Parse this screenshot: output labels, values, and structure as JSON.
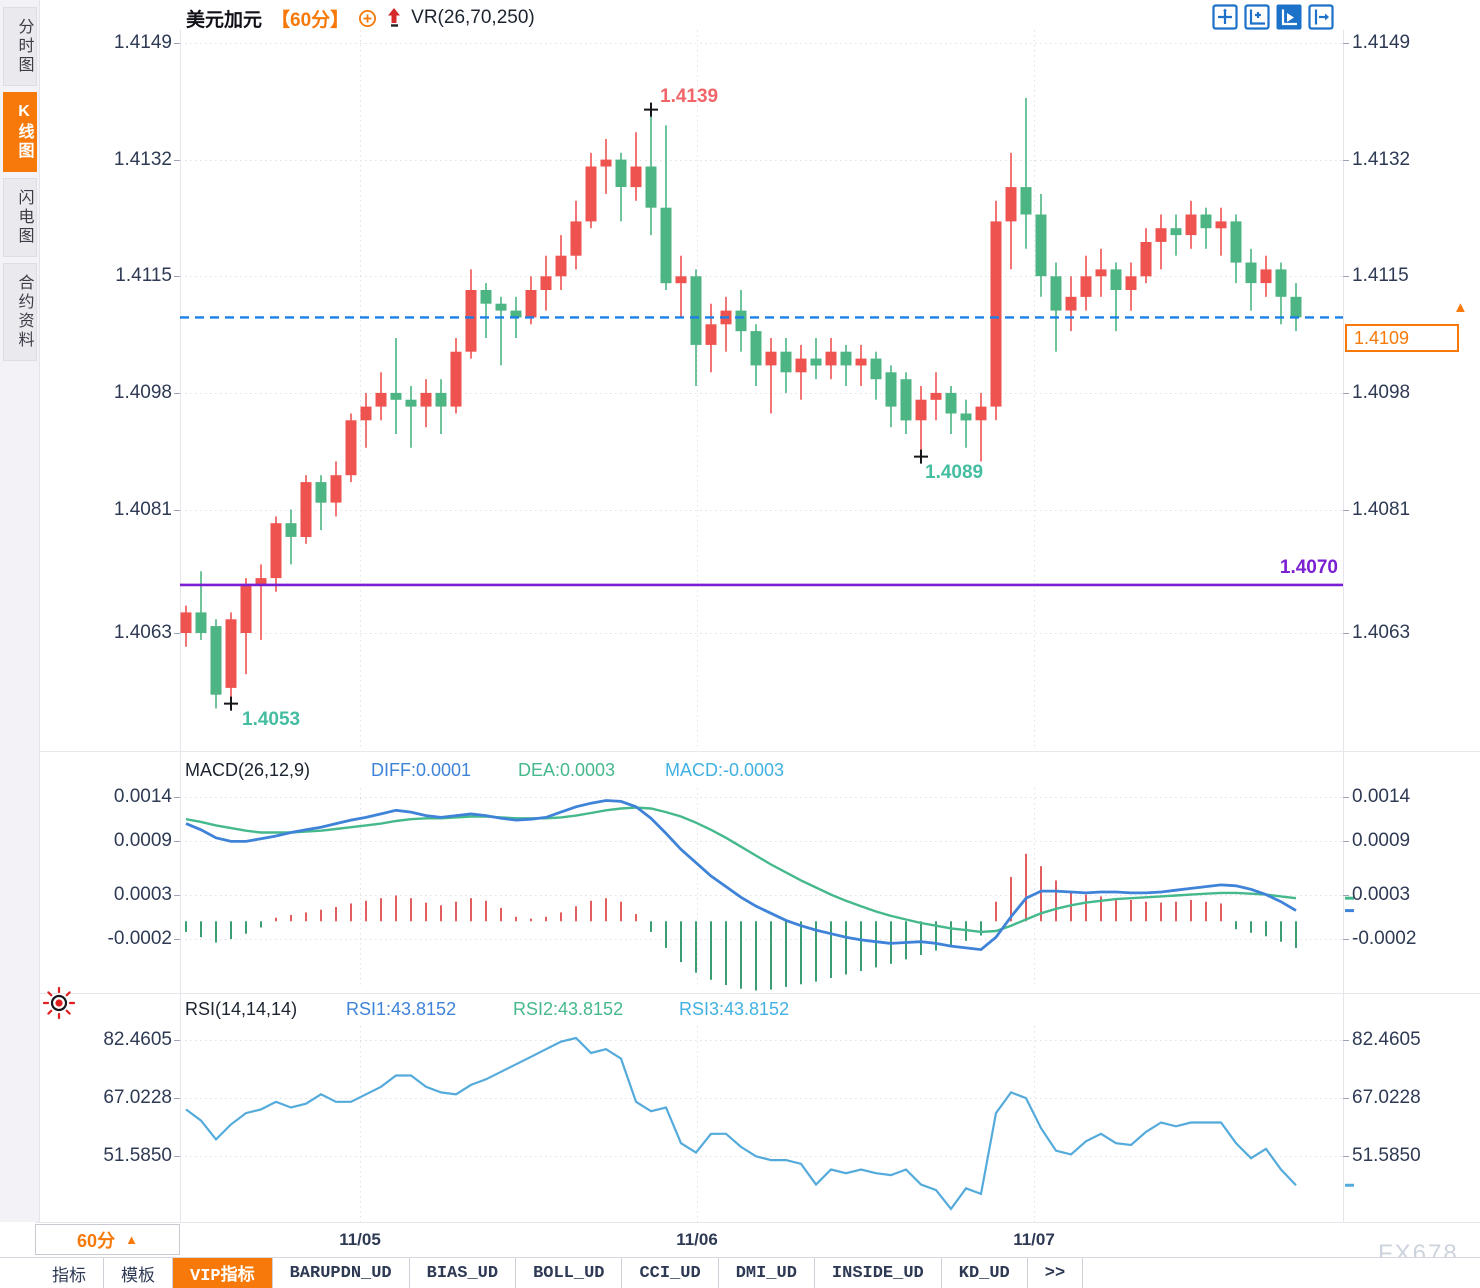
{
  "header": {
    "symbol": "美元加元",
    "timeframe_badge": "【60分】",
    "overlay_indicator": "VR(26,70,250)"
  },
  "sidebar": {
    "items": [
      {
        "label": "分时图",
        "active": false
      },
      {
        "label": "K线图",
        "active": true
      },
      {
        "label": "闪电图",
        "active": false
      },
      {
        "label": "合约资料",
        "active": false
      }
    ]
  },
  "toolbar": {
    "icons": [
      {
        "name": "pan-crosshair-icon",
        "active": false
      },
      {
        "name": "axis-add-icon",
        "active": false
      },
      {
        "name": "axis-play-icon",
        "active": true
      },
      {
        "name": "collapse-panel-icon",
        "active": false
      }
    ]
  },
  "price_tag": {
    "value": "1.4109"
  },
  "annotations": {
    "high": "1.4139",
    "low": "1.4053",
    "swing_low": "1.4089",
    "support": "1.4070"
  },
  "footer": {
    "timeframe_label": "60分",
    "dropdown_arrow": "▲",
    "watermark": "FX678"
  },
  "tabs": [
    {
      "label": "指标",
      "active": false
    },
    {
      "label": "模板",
      "active": false
    },
    {
      "label": "VIP指标",
      "active": true
    },
    {
      "label": "BARUPDN_UD",
      "active": false
    },
    {
      "label": "BIAS_UD",
      "active": false
    },
    {
      "label": "BOLL_UD",
      "active": false
    },
    {
      "label": "CCI_UD",
      "active": false
    },
    {
      "label": "DMI_UD",
      "active": false
    },
    {
      "label": "INSIDE_UD",
      "active": false
    },
    {
      "label": "KD_UD",
      "active": false
    },
    {
      "label": ">>",
      "active": false
    }
  ],
  "colors": {
    "accent_orange": "#f7790a",
    "up_red": "#ef5350",
    "down_green": "#4cb583",
    "dashed_blue": "#1a7fe8",
    "support_purple": "#7a1fd2",
    "diff_blue": "#3f83d9",
    "dea_green": "#45b98c",
    "macd_cyan": "#41b1e1",
    "rsi_blue": "#54abdb",
    "axis_text": "#2e3a54",
    "hist_red": "#e25d5d",
    "hist_green": "#3b9e73"
  },
  "chart_data": [
    {
      "type": "candlestick",
      "pair": "美元加元",
      "interval": "60分",
      "legend": "VR(26,70,250)",
      "y_ticks": [
        1.4149,
        1.4132,
        1.4115,
        1.4098,
        1.4081,
        1.4063
      ],
      "ylim": [
        1.4063,
        1.4149
      ],
      "x_axis_dates": [
        "11/05",
        "11/06",
        "11/07"
      ],
      "current_price": 1.4109,
      "support_line": 1.407,
      "markers": [
        {
          "index": 31,
          "at": "high",
          "label": "1.4139"
        },
        {
          "index": 3,
          "at": "low",
          "label": "1.4053"
        },
        {
          "index": 49,
          "at": "low",
          "label": "1.4089"
        }
      ],
      "ohlc": [
        [
          1.4063,
          1.4067,
          1.4061,
          1.4066
        ],
        [
          1.4066,
          1.4072,
          1.4062,
          1.4063
        ],
        [
          1.4064,
          1.4065,
          1.4052,
          1.4054
        ],
        [
          1.4055,
          1.4066,
          1.4053,
          1.4065
        ],
        [
          1.4063,
          1.4071,
          1.4057,
          1.407
        ],
        [
          1.407,
          1.4073,
          1.4062,
          1.4071
        ],
        [
          1.4071,
          1.408,
          1.4069,
          1.4079
        ],
        [
          1.4079,
          1.4081,
          1.4073,
          1.4077
        ],
        [
          1.4077,
          1.4086,
          1.4076,
          1.4085
        ],
        [
          1.4085,
          1.4086,
          1.4078,
          1.4082
        ],
        [
          1.4082,
          1.4088,
          1.408,
          1.4086
        ],
        [
          1.4086,
          1.4095,
          1.4085,
          1.4094
        ],
        [
          1.4094,
          1.4098,
          1.409,
          1.4096
        ],
        [
          1.4096,
          1.4101,
          1.4094,
          1.4098
        ],
        [
          1.4098,
          1.4106,
          1.4092,
          1.4097
        ],
        [
          1.4097,
          1.4099,
          1.409,
          1.4096
        ],
        [
          1.4096,
          1.41,
          1.4093,
          1.4098
        ],
        [
          1.4098,
          1.41,
          1.4092,
          1.4096
        ],
        [
          1.4096,
          1.4106,
          1.4095,
          1.4104
        ],
        [
          1.4104,
          1.4116,
          1.4103,
          1.4113
        ],
        [
          1.4113,
          1.4114,
          1.4106,
          1.4111
        ],
        [
          1.4111,
          1.4112,
          1.4102,
          1.411
        ],
        [
          1.411,
          1.4112,
          1.4106,
          1.4109
        ],
        [
          1.4109,
          1.4115,
          1.4108,
          1.4113
        ],
        [
          1.4113,
          1.4118,
          1.411,
          1.4115
        ],
        [
          1.4115,
          1.4121,
          1.4113,
          1.4118
        ],
        [
          1.4118,
          1.4126,
          1.4116,
          1.4123
        ],
        [
          1.4123,
          1.4133,
          1.4122,
          1.4131
        ],
        [
          1.4131,
          1.4135,
          1.4127,
          1.4132
        ],
        [
          1.4132,
          1.4133,
          1.4123,
          1.4128
        ],
        [
          1.4128,
          1.4136,
          1.4126,
          1.4131
        ],
        [
          1.4131,
          1.4139,
          1.4121,
          1.4125
        ],
        [
          1.4125,
          1.4137,
          1.4113,
          1.4114
        ],
        [
          1.4114,
          1.4118,
          1.4109,
          1.4115
        ],
        [
          1.4115,
          1.4116,
          1.4099,
          1.4105
        ],
        [
          1.4105,
          1.4111,
          1.4101,
          1.4108
        ],
        [
          1.4108,
          1.4112,
          1.4104,
          1.411
        ],
        [
          1.411,
          1.4113,
          1.4104,
          1.4107
        ],
        [
          1.4107,
          1.4108,
          1.4099,
          1.4102
        ],
        [
          1.4102,
          1.4106,
          1.4095,
          1.4104
        ],
        [
          1.4104,
          1.4106,
          1.4098,
          1.4101
        ],
        [
          1.4101,
          1.4105,
          1.4097,
          1.4103
        ],
        [
          1.4103,
          1.4106,
          1.41,
          1.4102
        ],
        [
          1.4102,
          1.4106,
          1.41,
          1.4104
        ],
        [
          1.4104,
          1.4105,
          1.4099,
          1.4102
        ],
        [
          1.4102,
          1.4105,
          1.4099,
          1.4103
        ],
        [
          1.4103,
          1.4104,
          1.4097,
          1.41
        ],
        [
          1.4101,
          1.4102,
          1.4093,
          1.4096
        ],
        [
          1.41,
          1.4101,
          1.4092,
          1.4094
        ],
        [
          1.4094,
          1.4099,
          1.4089,
          1.4097
        ],
        [
          1.4097,
          1.4101,
          1.4094,
          1.4098
        ],
        [
          1.4098,
          1.4099,
          1.4092,
          1.4095
        ],
        [
          1.4095,
          1.4097,
          1.409,
          1.4094
        ],
        [
          1.4094,
          1.4098,
          1.4088,
          1.4096
        ],
        [
          1.4096,
          1.4126,
          1.4094,
          1.4123
        ],
        [
          1.4123,
          1.4133,
          1.4116,
          1.4128
        ],
        [
          1.4128,
          1.4141,
          1.4119,
          1.4124
        ],
        [
          1.4124,
          1.4127,
          1.4112,
          1.4115
        ],
        [
          1.4115,
          1.4117,
          1.4104,
          1.411
        ],
        [
          1.411,
          1.4115,
          1.4107,
          1.4112
        ],
        [
          1.4112,
          1.4118,
          1.411,
          1.4115
        ],
        [
          1.4115,
          1.4119,
          1.4112,
          1.4116
        ],
        [
          1.4116,
          1.4117,
          1.4107,
          1.4113
        ],
        [
          1.4113,
          1.4117,
          1.411,
          1.4115
        ],
        [
          1.4115,
          1.4122,
          1.4114,
          1.412
        ],
        [
          1.412,
          1.4124,
          1.4116,
          1.4122
        ],
        [
          1.4122,
          1.4124,
          1.4118,
          1.4121
        ],
        [
          1.4121,
          1.4126,
          1.4119,
          1.4124
        ],
        [
          1.4124,
          1.4125,
          1.4119,
          1.4122
        ],
        [
          1.4122,
          1.4125,
          1.4118,
          1.4123
        ],
        [
          1.4123,
          1.4124,
          1.4114,
          1.4117
        ],
        [
          1.4117,
          1.4119,
          1.411,
          1.4114
        ],
        [
          1.4114,
          1.4118,
          1.4112,
          1.4116
        ],
        [
          1.4116,
          1.4117,
          1.4108,
          1.4112
        ],
        [
          1.4112,
          1.4114,
          1.4107,
          1.4109
        ]
      ]
    },
    {
      "type": "macd",
      "label": "MACD(26,12,9)",
      "diff_label": "DIFF:0.0001",
      "dea_label": "DEA:0.0003",
      "macd_label": "MACD:-0.0003",
      "y_ticks": [
        0.0014,
        0.0009,
        0.0003,
        -0.0002
      ],
      "diff": [
        0.0011,
        0.00103,
        0.00094,
        0.0009,
        0.0009,
        0.00093,
        0.00096,
        0.001,
        0.00103,
        0.00106,
        0.0011,
        0.00114,
        0.00117,
        0.00121,
        0.00125,
        0.00123,
        0.00119,
        0.00117,
        0.00119,
        0.00121,
        0.00119,
        0.00116,
        0.00114,
        0.00115,
        0.00117,
        0.00123,
        0.00129,
        0.00133,
        0.00136,
        0.00135,
        0.00129,
        0.00116,
        0.00099,
        0.00081,
        0.00066,
        0.00051,
        0.00039,
        0.00027,
        0.00017,
        9e-05,
        1e-05,
        -5e-05,
        -0.0001,
        -0.00014,
        -0.00018,
        -0.00021,
        -0.00023,
        -0.00025,
        -0.00024,
        -0.00023,
        -0.00025,
        -0.00028,
        -0.0003,
        -0.00032,
        -0.00018,
        5e-05,
        0.00026,
        0.00034,
        0.00034,
        0.00033,
        0.00032,
        0.00033,
        0.00033,
        0.00032,
        0.00032,
        0.00033,
        0.00035,
        0.00037,
        0.00039,
        0.00041,
        0.0004,
        0.00036,
        0.0003,
        0.00022,
        0.00012
      ],
      "dea": [
        0.00115,
        0.00112,
        0.00108,
        0.00105,
        0.00102,
        0.001,
        0.001,
        0.001,
        0.00101,
        0.00102,
        0.00104,
        0.00106,
        0.00108,
        0.0011,
        0.00113,
        0.00115,
        0.00116,
        0.00116,
        0.00117,
        0.00118,
        0.00118,
        0.00117,
        0.00116,
        0.00116,
        0.00116,
        0.00117,
        0.00119,
        0.00122,
        0.00125,
        0.00127,
        0.00128,
        0.00127,
        0.00123,
        0.00118,
        0.00111,
        0.00103,
        0.00094,
        0.00084,
        0.00074,
        0.00064,
        0.00055,
        0.00046,
        0.00038,
        0.0003,
        0.00023,
        0.00017,
        0.00011,
        6e-05,
        2e-05,
        -2e-05,
        -5e-05,
        -8e-05,
        -0.0001,
        -0.00012,
        -0.00011,
        -5e-05,
        2e-05,
        9e-05,
        0.00014,
        0.00018,
        0.00021,
        0.00023,
        0.00025,
        0.00026,
        0.00027,
        0.00028,
        0.00029,
        0.0003,
        0.00031,
        0.00032,
        0.00032,
        0.00031,
        0.0003,
        0.00028,
        0.00026
      ],
      "hist": [
        -0.00012,
        -0.00018,
        -0.00024,
        -0.0002,
        -0.00014,
        -7e-05,
        4e-05,
        7e-05,
        0.0001,
        0.00013,
        0.00016,
        0.0002,
        0.00023,
        0.00026,
        0.00029,
        0.00026,
        0.00021,
        0.00018,
        0.00022,
        0.00026,
        0.00023,
        0.00015,
        5e-05,
        3e-05,
        5e-05,
        0.0001,
        0.00017,
        0.00023,
        0.00026,
        0.00022,
        8e-05,
        -0.00012,
        -0.0003,
        -0.00046,
        -0.00058,
        -0.00066,
        -0.00072,
        -0.00076,
        -0.00078,
        -0.00077,
        -0.00074,
        -0.00071,
        -0.00068,
        -0.00064,
        -0.0006,
        -0.00056,
        -0.00052,
        -0.00048,
        -0.00043,
        -0.00038,
        -0.00033,
        -0.00028,
        -0.00022,
        -0.00016,
        0.00022,
        0.0005,
        0.00076,
        0.00062,
        0.00046,
        0.00034,
        0.0003,
        0.00028,
        0.00026,
        0.00024,
        0.00022,
        0.00021,
        0.00022,
        0.00024,
        0.00022,
        0.0002,
        -9e-05,
        -0.00013,
        -0.00017,
        -0.00023,
        -0.0003
      ]
    },
    {
      "type": "rsi",
      "label": "RSI(14,14,14)",
      "rsi1_label": "RSI1:43.8152",
      "rsi2_label": "RSI2:43.8152",
      "rsi3_label": "RSI3:43.8152",
      "y_ticks": [
        82.4605,
        67.0228,
        51.585
      ],
      "rsi": [
        64,
        61,
        56,
        60,
        63,
        64,
        66,
        64.5,
        65.5,
        68,
        66,
        66,
        68,
        70,
        73,
        73,
        70,
        68.5,
        68,
        70.5,
        72,
        74,
        76,
        78,
        80,
        82,
        83,
        79,
        80,
        77.5,
        66,
        63.5,
        64.5,
        55,
        52.5,
        57.5,
        57.5,
        54,
        51.5,
        50.5,
        50.5,
        49.5,
        44,
        48,
        47,
        48,
        47,
        46.5,
        48,
        44,
        42.5,
        37.5,
        43,
        41.5,
        63,
        68.5,
        67,
        59,
        53,
        52,
        55.5,
        57.5,
        55,
        54.5,
        58,
        60.5,
        59.5,
        60.5,
        60.5,
        60.5,
        55,
        51,
        53.5,
        48,
        43.8
      ]
    }
  ]
}
